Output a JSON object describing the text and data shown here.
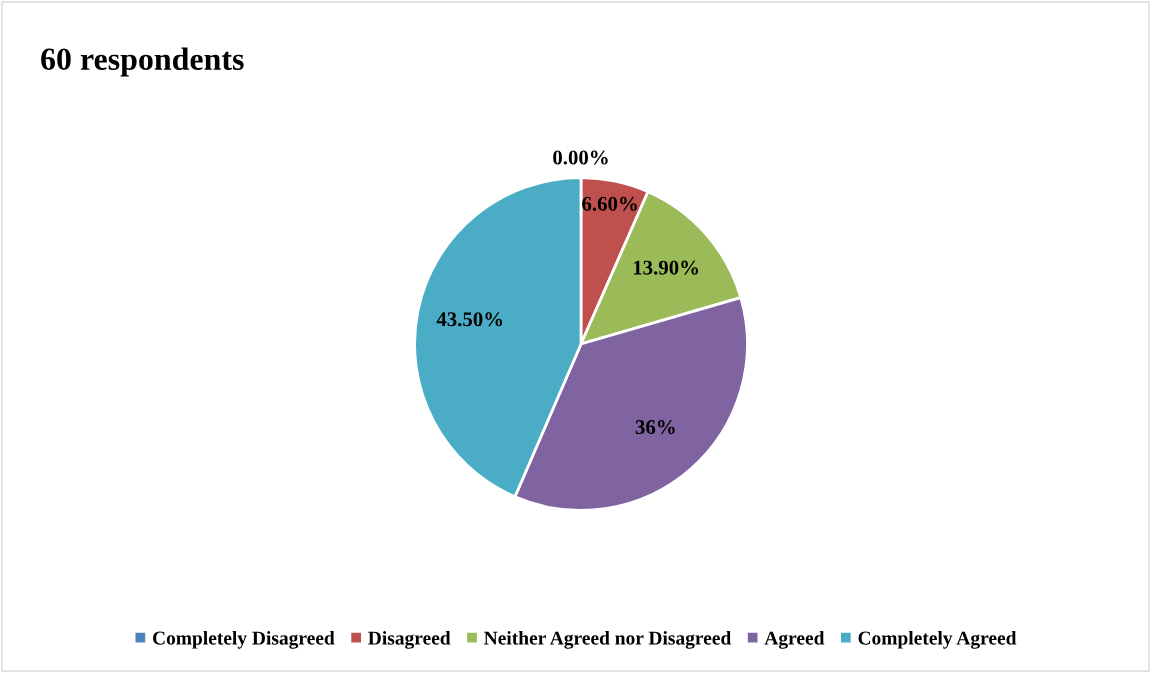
{
  "chart_data": {
    "type": "pie",
    "title": "60 respondents",
    "categories": [
      "Completely Disagreed",
      "Disagreed",
      "Neither Agreed nor Disagreed",
      "Agreed",
      "Completely Agreed"
    ],
    "values": [
      0,
      6.6,
      13.9,
      36,
      43.5
    ],
    "colors": [
      "#4f81bd",
      "#c0504d",
      "#9bbb59",
      "#8064a2",
      "#4bacc6"
    ],
    "value_labels": [
      "0.00%",
      "6.60%",
      "13.90%",
      "36%",
      "43.50%"
    ],
    "legend": "bottom"
  }
}
